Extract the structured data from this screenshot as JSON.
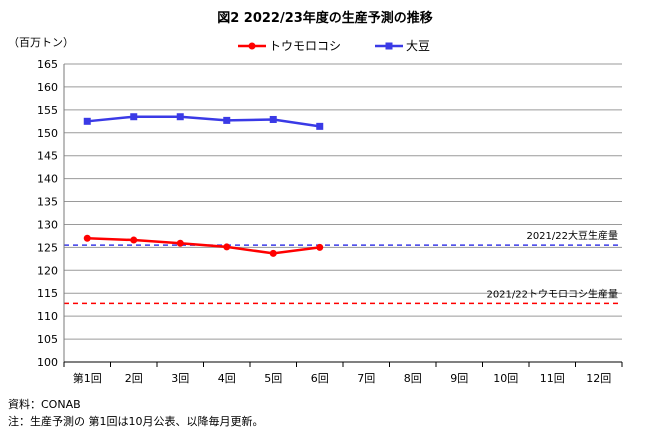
{
  "chart_data": {
    "type": "line",
    "title": "図2  2022/23年度の生産予測の推移",
    "ylabel": "（百万トン）",
    "ylim": [
      100,
      165
    ],
    "ytick_step": 5,
    "grid": "horizontal",
    "categories": [
      "第1回",
      "2回",
      "3回",
      "4回",
      "5回",
      "6回",
      "7回",
      "8回",
      "9回",
      "10回",
      "11回",
      "12回"
    ],
    "series": [
      {
        "name": "トウモロコシ",
        "color": "#ff0000",
        "marker": "circle",
        "values": [
          127.0,
          126.6,
          125.9,
          125.1,
          123.7,
          125.0,
          null,
          null,
          null,
          null,
          null,
          null
        ]
      },
      {
        "name": "大豆",
        "color": "#3a3ae6",
        "marker": "square",
        "values": [
          152.5,
          153.5,
          153.5,
          152.7,
          152.9,
          151.4,
          null,
          null,
          null,
          null,
          null,
          null
        ]
      }
    ],
    "reference_lines": [
      {
        "label": "2021/22大豆生産量",
        "value": 125.5,
        "color": "#3a3ae6"
      },
      {
        "label": "2021/22トウモロコシ生産量",
        "value": 112.8,
        "color": "#ff0000"
      }
    ],
    "legend_position": "top",
    "notes": [
      "資料：CONAB",
      "注：生産予測の 第1回は10月公表、以降毎月更新。"
    ]
  }
}
